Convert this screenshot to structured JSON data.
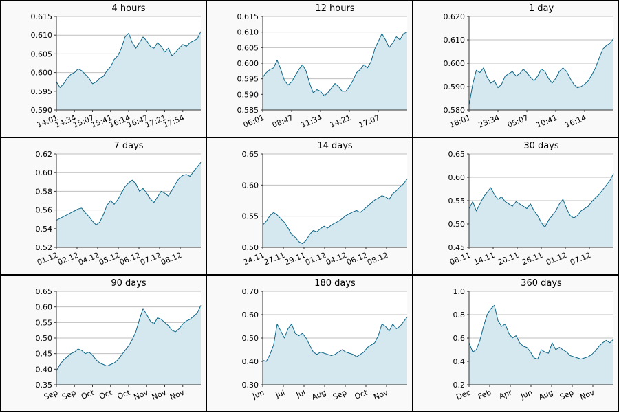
{
  "chart_data": [
    {
      "type": "area",
      "title": "4 hours",
      "ylim": [
        0.59,
        0.615
      ],
      "yticks": [
        "0.590",
        "0.595",
        "0.600",
        "0.605",
        "0.610",
        "0.615"
      ],
      "xticks": [
        "14:01",
        "14:34",
        "15:07",
        "15:41",
        "16:14",
        "16:47",
        "17:21",
        "17:54"
      ],
      "series": [
        {
          "values": [
            0.5975,
            0.596,
            0.597,
            0.5985,
            0.5995,
            0.6,
            0.601,
            0.6005,
            0.5995,
            0.5985,
            0.597,
            0.5975,
            0.5985,
            0.599,
            0.6005,
            0.6015,
            0.6035,
            0.6045,
            0.6065,
            0.6095,
            0.6105,
            0.608,
            0.6065,
            0.608,
            0.6095,
            0.6085,
            0.607,
            0.6065,
            0.608,
            0.607,
            0.6055,
            0.6065,
            0.6045,
            0.6055,
            0.6065,
            0.6075,
            0.607,
            0.608,
            0.6085,
            0.609,
            0.611
          ]
        }
      ]
    },
    {
      "type": "area",
      "title": "12 hours",
      "ylim": [
        0.585,
        0.615
      ],
      "yticks": [
        "0.585",
        "0.590",
        "0.595",
        "0.600",
        "0.605",
        "0.610",
        "0.615"
      ],
      "xticks": [
        "06:01",
        "08:47",
        "11:34",
        "14:21",
        "17:07"
      ],
      "series": [
        {
          "values": [
            0.5955,
            0.597,
            0.598,
            0.5985,
            0.601,
            0.598,
            0.5945,
            0.593,
            0.594,
            0.596,
            0.598,
            0.5995,
            0.5975,
            0.5935,
            0.5905,
            0.5915,
            0.591,
            0.5895,
            0.5905,
            0.592,
            0.5935,
            0.5925,
            0.591,
            0.591,
            0.5925,
            0.5945,
            0.597,
            0.598,
            0.5995,
            0.5985,
            0.6005,
            0.6045,
            0.607,
            0.6095,
            0.6075,
            0.605,
            0.6065,
            0.6085,
            0.6075,
            0.6095,
            0.61
          ]
        }
      ]
    },
    {
      "type": "area",
      "title": "1 day",
      "ylim": [
        0.58,
        0.62
      ],
      "yticks": [
        "0.580",
        "0.590",
        "0.600",
        "0.610",
        "0.620"
      ],
      "xticks": [
        "18:01",
        "23:34",
        "05:07",
        "10:41",
        "16:14"
      ],
      "series": [
        {
          "values": [
            0.582,
            0.591,
            0.597,
            0.596,
            0.598,
            0.594,
            0.5915,
            0.5925,
            0.5895,
            0.591,
            0.5945,
            0.5955,
            0.5965,
            0.5945,
            0.5955,
            0.5975,
            0.596,
            0.594,
            0.5925,
            0.5945,
            0.5975,
            0.5965,
            0.5935,
            0.5915,
            0.5935,
            0.5965,
            0.598,
            0.5965,
            0.5935,
            0.591,
            0.5895,
            0.59,
            0.591,
            0.5925,
            0.595,
            0.598,
            0.602,
            0.606,
            0.6075,
            0.6085,
            0.6105
          ]
        }
      ]
    },
    {
      "type": "area",
      "title": "7 days",
      "ylim": [
        0.52,
        0.62
      ],
      "yticks": [
        "0.52",
        "0.54",
        "0.56",
        "0.58",
        "0.60",
        "0.62"
      ],
      "xticks": [
        "01.12",
        "02.12",
        "04.12",
        "05.12",
        "06.12",
        "07.12",
        "08.12"
      ],
      "series": [
        {
          "values": [
            0.549,
            0.551,
            0.553,
            0.555,
            0.557,
            0.559,
            0.561,
            0.562,
            0.557,
            0.553,
            0.548,
            0.544,
            0.547,
            0.555,
            0.565,
            0.57,
            0.566,
            0.571,
            0.578,
            0.585,
            0.589,
            0.592,
            0.588,
            0.58,
            0.583,
            0.578,
            0.572,
            0.568,
            0.574,
            0.58,
            0.578,
            0.575,
            0.581,
            0.588,
            0.594,
            0.597,
            0.598,
            0.596,
            0.601,
            0.606,
            0.611
          ]
        }
      ]
    },
    {
      "type": "area",
      "title": "14 days",
      "ylim": [
        0.5,
        0.65
      ],
      "yticks": [
        "0.50",
        "0.55",
        "0.60",
        "0.65"
      ],
      "xticks": [
        "24.11",
        "27.11",
        "29.11",
        "01.12",
        "04.12",
        "06.12",
        "08.12"
      ],
      "series": [
        {
          "values": [
            0.536,
            0.542,
            0.551,
            0.556,
            0.552,
            0.546,
            0.54,
            0.531,
            0.521,
            0.516,
            0.509,
            0.506,
            0.511,
            0.521,
            0.527,
            0.525,
            0.53,
            0.534,
            0.531,
            0.536,
            0.539,
            0.542,
            0.546,
            0.551,
            0.554,
            0.557,
            0.559,
            0.556,
            0.561,
            0.566,
            0.571,
            0.576,
            0.579,
            0.583,
            0.581,
            0.577,
            0.586,
            0.591,
            0.597,
            0.602,
            0.61
          ]
        }
      ]
    },
    {
      "type": "area",
      "title": "30 days",
      "ylim": [
        0.45,
        0.65
      ],
      "yticks": [
        "0.45",
        "0.50",
        "0.55",
        "0.60",
        "0.65"
      ],
      "xticks": [
        "08.11",
        "14.11",
        "20.11",
        "26.11",
        "01.12",
        "07.12"
      ],
      "series": [
        {
          "values": [
            0.533,
            0.548,
            0.528,
            0.543,
            0.558,
            0.568,
            0.578,
            0.563,
            0.553,
            0.558,
            0.548,
            0.543,
            0.538,
            0.548,
            0.543,
            0.538,
            0.533,
            0.543,
            0.528,
            0.518,
            0.503,
            0.493,
            0.508,
            0.518,
            0.528,
            0.543,
            0.553,
            0.533,
            0.518,
            0.513,
            0.518,
            0.528,
            0.533,
            0.538,
            0.548,
            0.556,
            0.563,
            0.573,
            0.583,
            0.593,
            0.608
          ]
        }
      ]
    },
    {
      "type": "area",
      "title": "90 days",
      "ylim": [
        0.35,
        0.65
      ],
      "yticks": [
        "0.35",
        "0.40",
        "0.45",
        "0.50",
        "0.55",
        "0.60",
        "0.65"
      ],
      "xticks": [
        "Sep",
        "Sep",
        "Oct",
        "Oct",
        "Oct",
        "Nov",
        "Nov",
        "Nov"
      ],
      "series": [
        {
          "values": [
            0.395,
            0.415,
            0.43,
            0.44,
            0.45,
            0.455,
            0.465,
            0.46,
            0.45,
            0.455,
            0.445,
            0.43,
            0.42,
            0.415,
            0.41,
            0.415,
            0.42,
            0.43,
            0.445,
            0.46,
            0.475,
            0.495,
            0.52,
            0.56,
            0.595,
            0.575,
            0.555,
            0.545,
            0.565,
            0.56,
            0.55,
            0.54,
            0.525,
            0.52,
            0.53,
            0.545,
            0.555,
            0.56,
            0.57,
            0.58,
            0.605
          ]
        }
      ]
    },
    {
      "type": "area",
      "title": "180 days",
      "ylim": [
        0.3,
        0.7
      ],
      "yticks": [
        "0.30",
        "0.40",
        "0.50",
        "0.60",
        "0.70"
      ],
      "xticks": [
        "Jun",
        "Jul",
        "Jul",
        "Aug",
        "Sep",
        "Oct",
        "Nov"
      ],
      "series": [
        {
          "values": [
            0.405,
            0.4,
            0.43,
            0.47,
            0.56,
            0.53,
            0.5,
            0.54,
            0.56,
            0.52,
            0.51,
            0.52,
            0.5,
            0.47,
            0.44,
            0.43,
            0.44,
            0.435,
            0.43,
            0.425,
            0.43,
            0.44,
            0.45,
            0.44,
            0.435,
            0.43,
            0.42,
            0.43,
            0.44,
            0.46,
            0.47,
            0.48,
            0.51,
            0.56,
            0.55,
            0.53,
            0.56,
            0.54,
            0.55,
            0.57,
            0.59
          ]
        }
      ]
    },
    {
      "type": "area",
      "title": "360 days",
      "ylim": [
        0.2,
        1.0
      ],
      "yticks": [
        "0.2",
        "0.4",
        "0.6",
        "0.8",
        "1.0"
      ],
      "xticks": [
        "Dec",
        "Feb",
        "Apr",
        "Jun",
        "Aug",
        "Sep",
        "Nov"
      ],
      "series": [
        {
          "values": [
            0.56,
            0.48,
            0.5,
            0.58,
            0.7,
            0.8,
            0.85,
            0.88,
            0.75,
            0.7,
            0.72,
            0.64,
            0.6,
            0.62,
            0.56,
            0.53,
            0.52,
            0.48,
            0.43,
            0.42,
            0.5,
            0.48,
            0.47,
            0.56,
            0.5,
            0.52,
            0.5,
            0.48,
            0.45,
            0.44,
            0.43,
            0.42,
            0.43,
            0.44,
            0.46,
            0.49,
            0.53,
            0.56,
            0.58,
            0.56,
            0.59
          ]
        }
      ]
    }
  ]
}
